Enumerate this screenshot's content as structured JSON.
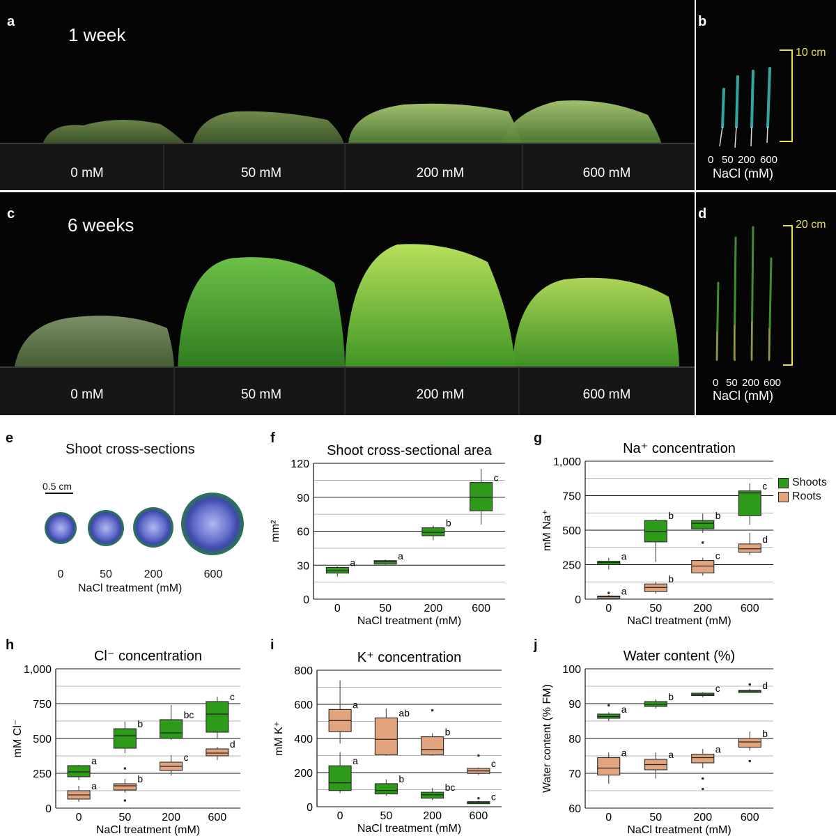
{
  "panels": {
    "a": {
      "letter": "a",
      "time": "1 week",
      "trays": [
        "0 mM",
        "50 mM",
        "200 mM",
        "600 mM"
      ]
    },
    "b": {
      "letter": "b",
      "scale": "10 cm",
      "ticks": [
        "0",
        "50",
        "200",
        "600"
      ],
      "axis": "NaCl (mM)"
    },
    "c": {
      "letter": "c",
      "time": "6 weeks",
      "trays": [
        "0 mM",
        "50 mM",
        "200 mM",
        "600 mM"
      ]
    },
    "d": {
      "letter": "d",
      "scale": "20 cm",
      "ticks": [
        "0",
        "50",
        "200",
        "600"
      ],
      "axis": "NaCl (mM)"
    },
    "e": {
      "letter": "e",
      "title": "Shoot cross-sections",
      "scale": "0.5 cm",
      "ticks": [
        "0",
        "50",
        "200",
        "600"
      ],
      "axis": "NaCl treatment (mM)"
    }
  },
  "legend": {
    "shoots": "Shoots",
    "roots": "Roots",
    "shoot_color": "#2e9a1a",
    "root_color": "#e2a47c"
  },
  "chart_data": [
    {
      "panel": "f",
      "type": "box",
      "title": "Shoot cross-sectional area",
      "ylabel": "mm²",
      "xlabel": "NaCl treatment (mM)",
      "categories": [
        "0",
        "50",
        "200",
        "600"
      ],
      "ylim": [
        0,
        120
      ],
      "yticks": [
        "0",
        "30",
        "60",
        "90",
        "120"
      ],
      "ytick_values": [
        0,
        30,
        60,
        90,
        120
      ],
      "minor_grid": [
        15,
        45,
        75,
        105
      ],
      "series": [
        {
          "color": "#2e9a1a",
          "boxes": [
            {
              "q1": 23,
              "median": 25,
              "q3": 28,
              "lo": 20,
              "hi": 29,
              "sig": "a",
              "outliers": []
            },
            {
              "q1": 31,
              "median": 33,
              "q3": 34,
              "lo": 30,
              "hi": 35,
              "sig": "a",
              "outliers": []
            },
            {
              "q1": 56,
              "median": 59,
              "q3": 63,
              "lo": 52,
              "hi": 65,
              "sig": "b",
              "outliers": []
            },
            {
              "q1": 78,
              "median": 90,
              "q3": 103,
              "lo": 66,
              "hi": 115,
              "sig": "c",
              "outliers": []
            }
          ]
        }
      ]
    },
    {
      "panel": "g",
      "type": "box",
      "title": "Na⁺ concentration",
      "ylabel": "mM Na⁺",
      "xlabel": "NaCl treatment (mM)",
      "categories": [
        "0",
        "50",
        "200",
        "600"
      ],
      "ylim": [
        0,
        1000
      ],
      "yticks": [
        "0",
        "250",
        "500",
        "750",
        "1,000"
      ],
      "ytick_values": [
        0,
        250,
        500,
        750,
        1000
      ],
      "minor_grid": [
        125,
        375,
        625,
        875
      ],
      "series": [
        {
          "name": "Shoots",
          "color": "#2e9a1a",
          "boxes": [
            {
              "q1": 250,
              "median": 265,
              "q3": 275,
              "lo": 215,
              "hi": 300,
              "sig": "a",
              "outliers": []
            },
            {
              "q1": 415,
              "median": 490,
              "q3": 570,
              "lo": 270,
              "hi": 580,
              "sig": "b",
              "outliers": []
            },
            {
              "q1": 510,
              "median": 550,
              "q3": 570,
              "lo": 480,
              "hi": 620,
              "sig": "b",
              "outliers": [
                410
              ]
            },
            {
              "q1": 605,
              "median": 770,
              "q3": 785,
              "lo": 540,
              "hi": 840,
              "sig": "c",
              "outliers": []
            }
          ]
        },
        {
          "name": "Roots",
          "color": "#e2a47c",
          "boxes": [
            {
              "q1": 12,
              "median": 18,
              "q3": 22,
              "lo": 10,
              "hi": 30,
              "sig": "a",
              "outliers": [
                45
              ]
            },
            {
              "q1": 55,
              "median": 85,
              "q3": 110,
              "lo": 40,
              "hi": 125,
              "sig": "b",
              "outliers": []
            },
            {
              "q1": 190,
              "median": 240,
              "q3": 280,
              "lo": 170,
              "hi": 300,
              "sig": "c",
              "outliers": []
            },
            {
              "q1": 340,
              "median": 365,
              "q3": 400,
              "lo": 320,
              "hi": 480,
              "sig": "d",
              "outliers": []
            }
          ]
        }
      ]
    },
    {
      "panel": "h",
      "type": "box",
      "title": "Cl⁻ concentration",
      "ylabel": "mM Cl⁻",
      "xlabel": "NaCl treatment (mM)",
      "categories": [
        "0",
        "50",
        "200",
        "600"
      ],
      "ylim": [
        0,
        1000
      ],
      "yticks": [
        "0",
        "250",
        "500",
        "750",
        "1,000"
      ],
      "ytick_values": [
        0,
        250,
        500,
        750,
        1000
      ],
      "minor_grid": [
        125,
        375,
        625,
        875
      ],
      "series": [
        {
          "name": "Shoots",
          "color": "#2e9a1a",
          "boxes": [
            {
              "q1": 225,
              "median": 260,
              "q3": 305,
              "lo": 200,
              "hi": 310,
              "sig": "a",
              "outliers": []
            },
            {
              "q1": 430,
              "median": 520,
              "q3": 570,
              "lo": 395,
              "hi": 620,
              "sig": "b",
              "outliers": [
                285
              ]
            },
            {
              "q1": 500,
              "median": 540,
              "q3": 635,
              "lo": 490,
              "hi": 740,
              "sig": "bc",
              "outliers": []
            },
            {
              "q1": 545,
              "median": 675,
              "q3": 765,
              "lo": 500,
              "hi": 800,
              "sig": "c",
              "outliers": []
            }
          ]
        },
        {
          "name": "Roots",
          "color": "#e2a47c",
          "boxes": [
            {
              "q1": 65,
              "median": 95,
              "q3": 125,
              "lo": 45,
              "hi": 160,
              "sig": "a",
              "outliers": []
            },
            {
              "q1": 130,
              "median": 160,
              "q3": 175,
              "lo": 110,
              "hi": 210,
              "sig": "b",
              "outliers": [
                55
              ]
            },
            {
              "q1": 270,
              "median": 300,
              "q3": 330,
              "lo": 235,
              "hi": 380,
              "sig": "c",
              "outliers": []
            },
            {
              "q1": 375,
              "median": 395,
              "q3": 425,
              "lo": 345,
              "hi": 440,
              "sig": "d",
              "outliers": []
            }
          ]
        }
      ]
    },
    {
      "panel": "i",
      "type": "box",
      "title": "K⁺ concentration",
      "ylabel": "mM K⁺",
      "xlabel": "NaCl treatment (mM)",
      "categories": [
        "0",
        "50",
        "200",
        "600"
      ],
      "ylim": [
        0,
        800
      ],
      "yticks": [
        "0",
        "200",
        "400",
        "600",
        "800"
      ],
      "ytick_values": [
        0,
        200,
        400,
        600,
        800
      ],
      "minor_grid": [
        100,
        300,
        500,
        700
      ],
      "series": [
        {
          "name": "Roots",
          "color": "#e2a47c",
          "boxes": [
            {
              "q1": 440,
              "median": 505,
              "q3": 570,
              "lo": 370,
              "hi": 740,
              "sig": "a",
              "outliers": []
            },
            {
              "q1": 305,
              "median": 395,
              "q3": 520,
              "lo": 300,
              "hi": 575,
              "sig": "ab",
              "outliers": []
            },
            {
              "q1": 305,
              "median": 335,
              "q3": 410,
              "lo": 300,
              "hi": 430,
              "sig": "b",
              "outliers": [
                565
              ]
            },
            {
              "q1": 195,
              "median": 210,
              "q3": 225,
              "lo": 185,
              "hi": 230,
              "sig": "c",
              "outliers": [
                300
              ]
            }
          ]
        },
        {
          "name": "Shoots",
          "color": "#2e9a1a",
          "boxes": [
            {
              "q1": 95,
              "median": 140,
              "q3": 240,
              "lo": 80,
              "hi": 320,
              "sig": "a",
              "outliers": []
            },
            {
              "q1": 75,
              "median": 95,
              "q3": 135,
              "lo": 65,
              "hi": 160,
              "sig": "b",
              "outliers": []
            },
            {
              "q1": 50,
              "median": 70,
              "q3": 85,
              "lo": 40,
              "hi": 110,
              "sig": "bc",
              "outliers": []
            },
            {
              "q1": 20,
              "median": 25,
              "q3": 30,
              "lo": 18,
              "hi": 35,
              "sig": "c",
              "outliers": [
                50
              ]
            }
          ]
        }
      ]
    },
    {
      "panel": "j",
      "type": "box",
      "title": "Water content (%)",
      "ylabel": "Water content (% FM)",
      "xlabel": "NaCl treatment (mM)",
      "categories": [
        "0",
        "50",
        "200",
        "600"
      ],
      "ylim": [
        60,
        100
      ],
      "yticks": [
        "60",
        "70",
        "80",
        "90",
        "100"
      ],
      "ytick_values": [
        60,
        70,
        80,
        90,
        100
      ],
      "minor_grid": [
        65,
        75,
        85,
        95
      ],
      "series": [
        {
          "name": "Shoots",
          "color": "#2e9a1a",
          "boxes": [
            {
              "q1": 85.8,
              "median": 86.3,
              "q3": 87.0,
              "lo": 85.0,
              "hi": 87.5,
              "sig": "a",
              "outliers": [
                89.5
              ]
            },
            {
              "q1": 89.2,
              "median": 89.8,
              "q3": 90.6,
              "lo": 88.6,
              "hi": 91.3,
              "sig": "b",
              "outliers": []
            },
            {
              "q1": 92.3,
              "median": 92.6,
              "q3": 93.0,
              "lo": 91.8,
              "hi": 93.3,
              "sig": "c",
              "outliers": []
            },
            {
              "q1": 93.4,
              "median": 93.6,
              "q3": 93.8,
              "lo": 93.2,
              "hi": 94.2,
              "sig": "d",
              "outliers": [
                95.5
              ]
            }
          ]
        },
        {
          "name": "Roots",
          "color": "#e2a47c",
          "boxes": [
            {
              "q1": 69.5,
              "median": 71.5,
              "q3": 74.5,
              "lo": 67.0,
              "hi": 76.0,
              "sig": "a",
              "outliers": []
            },
            {
              "q1": 71.0,
              "median": 72.5,
              "q3": 74.0,
              "lo": 68.5,
              "hi": 76.0,
              "sig": "a",
              "outliers": []
            },
            {
              "q1": 73.0,
              "median": 74.5,
              "q3": 75.5,
              "lo": 71.5,
              "hi": 77.0,
              "sig": "a",
              "outliers": [
                68.5,
                65.5
              ]
            },
            {
              "q1": 77.5,
              "median": 79.0,
              "q3": 80.0,
              "lo": 76.5,
              "hi": 82.0,
              "sig": "b",
              "outliers": [
                73.5
              ]
            }
          ]
        }
      ]
    }
  ]
}
